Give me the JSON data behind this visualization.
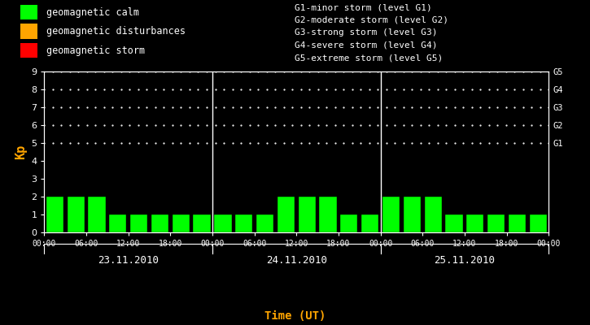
{
  "background_color": "#000000",
  "plot_bg_color": "#000000",
  "bar_color": "#00ff00",
  "bar_edge_color": "#000000",
  "axis_text_color": "#ffffff",
  "xlabel_color": "#ffa500",
  "ylabel_color": "#ffa500",
  "right_labels_color": "#ffffff",
  "days": [
    "23.11.2010",
    "24.11.2010",
    "25.11.2010"
  ],
  "kp_values": [
    [
      2,
      2,
      2,
      1,
      1,
      1,
      1,
      1
    ],
    [
      1,
      1,
      1,
      2,
      2,
      2,
      1,
      1
    ],
    [
      2,
      2,
      2,
      1,
      1,
      1,
      1,
      1
    ]
  ],
  "legend_items": [
    {
      "label": "geomagnetic calm",
      "color": "#00ff00"
    },
    {
      "label": "geomagnetic disturbances",
      "color": "#ffa500"
    },
    {
      "label": "geomagnetic storm",
      "color": "#ff0000"
    }
  ],
  "right_labels": [
    "G1",
    "G2",
    "G3",
    "G4",
    "G5"
  ],
  "right_label_yvals": [
    5,
    6,
    7,
    8,
    9
  ],
  "storm_lines": [
    "G1-minor storm (level G1)",
    "G2-moderate storm (level G2)",
    "G3-strong storm (level G3)",
    "G4-severe storm (level G4)",
    "G5-extreme storm (level G5)"
  ],
  "xlabel": "Time (UT)",
  "ylabel": "Kp",
  "ylim": [
    0,
    9
  ],
  "yticks": [
    0,
    1,
    2,
    3,
    4,
    5,
    6,
    7,
    8,
    9
  ],
  "dot_grid_y": [
    5,
    6,
    7,
    8,
    9
  ],
  "bar_width": 0.82,
  "n_bars_per_day": 8,
  "hours_per_bar": 3
}
